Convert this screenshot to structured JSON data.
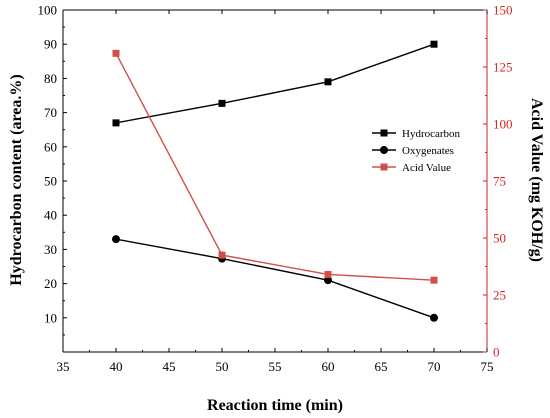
{
  "chart_data": {
    "type": "line",
    "xlabel": "Reaction time (min)",
    "ylabel_left": "Hydrocarbon content (area.%)",
    "ylabel_right": "Acid Value (mg KOH/g)",
    "x": [
      40,
      50,
      60,
      70
    ],
    "xlim": [
      35,
      75
    ],
    "xticks": [
      "35",
      "40",
      "45",
      "50",
      "55",
      "60",
      "65",
      "70",
      "75"
    ],
    "ylim_left": [
      0,
      100
    ],
    "yticks_left": [
      "10",
      "20",
      "30",
      "40",
      "50",
      "60",
      "70",
      "80",
      "90",
      "100"
    ],
    "ylim_right": [
      0,
      150
    ],
    "yticks_right": [
      "0",
      "25",
      "50",
      "75",
      "100",
      "125",
      "150"
    ],
    "series": [
      {
        "name": "Hydrocarbon",
        "axis": "left",
        "marker": "square",
        "color": "#000000",
        "values": [
          67,
          72.7,
          79,
          90
        ]
      },
      {
        "name": "Oxygenates",
        "axis": "left",
        "marker": "circle",
        "color": "#000000",
        "values": [
          33,
          27.3,
          21,
          10
        ]
      },
      {
        "name": "Acid Value",
        "axis": "right",
        "marker": "square",
        "color": "#d2504a",
        "values": [
          131,
          42.5,
          34,
          31.5
        ]
      }
    ],
    "legend_position": "right",
    "grid": false,
    "right_axis_color": "#d2261f"
  }
}
